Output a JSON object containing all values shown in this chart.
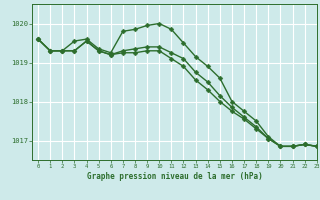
{
  "background_color": "#ceeaea",
  "grid_color": "#ffffff",
  "line_color": "#2d6e2d",
  "title": "Graphe pression niveau de la mer (hPa)",
  "xlim": [
    -0.5,
    23
  ],
  "ylim": [
    1016.5,
    1020.5
  ],
  "yticks": [
    1017,
    1018,
    1019,
    1020
  ],
  "xticks": [
    0,
    1,
    2,
    3,
    4,
    5,
    6,
    7,
    8,
    9,
    10,
    11,
    12,
    13,
    14,
    15,
    16,
    17,
    18,
    19,
    20,
    21,
    22,
    23
  ],
  "series": [
    [
      1019.6,
      1019.3,
      1019.3,
      1019.55,
      1019.6,
      1019.35,
      1019.25,
      1019.8,
      1019.85,
      1019.95,
      1020.0,
      1019.85,
      1019.5,
      1019.15,
      1018.9,
      1018.6,
      1018.0,
      1017.75,
      1017.5,
      1017.1,
      1016.85,
      1016.85,
      1016.9,
      1016.85
    ],
    [
      1019.6,
      1019.3,
      1019.3,
      1019.3,
      1019.55,
      1019.3,
      1019.2,
      1019.3,
      1019.35,
      1019.4,
      1019.4,
      1019.25,
      1019.1,
      1018.75,
      1018.5,
      1018.15,
      1017.85,
      1017.6,
      1017.35,
      1017.05,
      1016.85,
      1016.85,
      1016.9,
      1016.85
    ],
    [
      1019.6,
      1019.3,
      1019.3,
      1019.3,
      1019.55,
      1019.3,
      1019.2,
      1019.25,
      1019.25,
      1019.3,
      1019.3,
      1019.1,
      1018.9,
      1018.55,
      1018.3,
      1018.0,
      1017.75,
      1017.55,
      1017.3,
      1017.05,
      1016.85,
      1016.85,
      1016.9,
      1016.85
    ]
  ],
  "marker_size": 2.5,
  "linewidth": 1.0
}
